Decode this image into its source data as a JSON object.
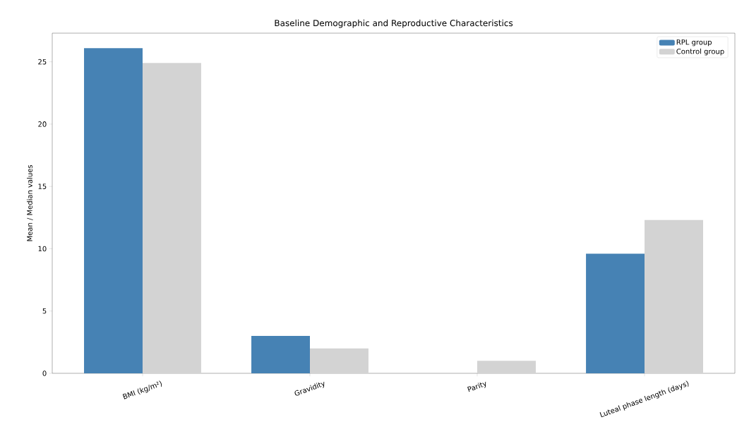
{
  "chart_data": {
    "type": "bar",
    "title": "Baseline Demographic and Reproductive Characteristics",
    "ylabel": "Mean / Median values",
    "categories": [
      "BMI (kg/m²)",
      "Gravidity",
      "Parity",
      "Luteal phase length (days)"
    ],
    "series": [
      {
        "name": "RPL group",
        "color": "#4682b4",
        "values": [
          26.1,
          3,
          0,
          9.6
        ]
      },
      {
        "name": "Control group",
        "color": "#d3d3d3",
        "values": [
          24.9,
          2,
          1,
          12.3
        ]
      }
    ],
    "ylim": [
      0,
      27.3
    ],
    "yticks": [
      0,
      5,
      10,
      15,
      20,
      25
    ],
    "legend": "top right",
    "grid": false
  }
}
